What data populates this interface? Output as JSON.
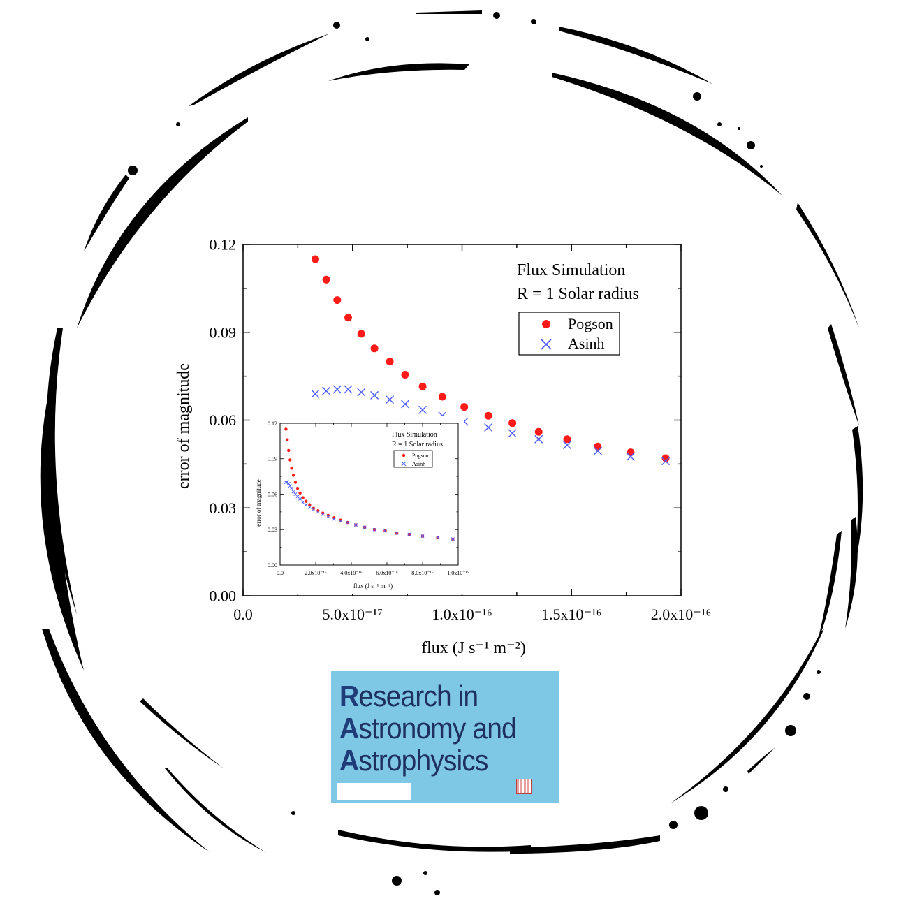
{
  "main_chart": {
    "ylabel": "error of magnitude",
    "xlabel": "flux (J s⁻¹ m⁻²)",
    "xlim": [
      0,
      2e-16
    ],
    "ylim": [
      0,
      0.12
    ],
    "x_ticks": [
      "0.0",
      "5.0x10⁻¹⁷",
      "1.0x10⁻¹⁶",
      "1.5x10⁻¹⁶",
      "2.0x10⁻¹⁶"
    ],
    "y_ticks": [
      "0.00",
      "0.03",
      "0.06",
      "0.09",
      "0.12"
    ],
    "annotation_line1": "Flux Simulation",
    "annotation_line2": "R = 1 Solar radius",
    "legend": [
      "Pogson",
      "Asinh"
    ],
    "colors": {
      "pogson": "#ff1a1a",
      "asinh": "#4a5cff"
    }
  },
  "inset_chart": {
    "ylabel": "error of magnitude",
    "xlabel": "flux (J s⁻¹ m⁻²)",
    "xlim": [
      0,
      1e-15
    ],
    "ylim": [
      0,
      0.12
    ],
    "x_ticks": [
      "0.0",
      "2.0x10⁻¹⁶",
      "4.0x10⁻¹⁶",
      "6.0x10⁻¹⁶",
      "8.0x10⁻¹⁶",
      "1.0x10⁻¹⁵"
    ],
    "y_ticks": [
      "0.00",
      "0.03",
      "0.06",
      "0.09",
      "0.12"
    ],
    "annotation_line1": "Flux Simulation",
    "annotation_line2": "R = 1 Solar radius",
    "legend": [
      "Pogson",
      "Asinh"
    ]
  },
  "chart_data": [
    {
      "type": "scatter",
      "xlim": [
        0,
        2e-16
      ],
      "ylim": [
        0,
        0.12
      ],
      "series": [
        {
          "name": "Pogson",
          "x": [
            3.3e-17,
            3.8e-17,
            4.3e-17,
            4.8e-17,
            5.4e-17,
            6e-17,
            6.7e-17,
            7.4e-17,
            8.2e-17,
            9.1e-17,
            1.01e-16,
            1.12e-16,
            1.23e-16,
            1.35e-16,
            1.48e-16,
            1.62e-16,
            1.77e-16,
            1.93e-16
          ],
          "y": [
            0.115,
            0.108,
            0.101,
            0.095,
            0.0895,
            0.0845,
            0.08,
            0.0755,
            0.0715,
            0.068,
            0.0645,
            0.0615,
            0.059,
            0.056,
            0.0535,
            0.051,
            0.049,
            0.047
          ]
        },
        {
          "name": "Asinh",
          "x": [
            3.3e-17,
            3.8e-17,
            4.3e-17,
            4.8e-17,
            5.4e-17,
            6e-17,
            6.7e-17,
            7.4e-17,
            8.2e-17,
            9.1e-17,
            1.01e-16,
            1.12e-16,
            1.23e-16,
            1.35e-16,
            1.48e-16,
            1.62e-16,
            1.77e-16,
            1.93e-16
          ],
          "y": [
            0.069,
            0.07,
            0.0705,
            0.0705,
            0.0695,
            0.0685,
            0.067,
            0.0655,
            0.0635,
            0.0615,
            0.0595,
            0.0575,
            0.0555,
            0.0535,
            0.0515,
            0.0495,
            0.0475,
            0.046
          ]
        }
      ]
    },
    {
      "type": "scatter",
      "xlim": [
        0,
        1e-15
      ],
      "ylim": [
        0,
        0.12
      ],
      "series": [
        {
          "name": "Pogson",
          "x": [
            3.3e-17,
            4e-17,
            4.8e-17,
            5.6e-17,
            6.5e-17,
            7.5e-17,
            8.6e-17,
            9.8e-17,
            1.12e-16,
            1.28e-16,
            1.46e-16,
            1.66e-16,
            1.88e-16,
            2.13e-16,
            2.4e-16,
            2.7e-16,
            3.03e-16,
            3.4e-16,
            3.8e-16,
            4.25e-16,
            4.75e-16,
            5.3e-16,
            5.9e-16,
            6.55e-16,
            7.25e-16,
            8e-16,
            8.85e-16,
            9.7e-16
          ],
          "y": [
            0.115,
            0.106,
            0.097,
            0.089,
            0.082,
            0.076,
            0.07,
            0.065,
            0.061,
            0.057,
            0.054,
            0.051,
            0.048,
            0.046,
            0.044,
            0.042,
            0.04,
            0.038,
            0.036,
            0.034,
            0.032,
            0.03,
            0.029,
            0.027,
            0.026,
            0.0245,
            0.0235,
            0.022
          ]
        },
        {
          "name": "Asinh",
          "x": [
            3.3e-17,
            4e-17,
            4.8e-17,
            5.6e-17,
            6.5e-17,
            7.5e-17,
            8.6e-17,
            9.8e-17,
            1.12e-16,
            1.28e-16,
            1.46e-16,
            1.66e-16,
            1.88e-16,
            2.13e-16,
            2.4e-16,
            2.7e-16,
            3.03e-16,
            3.4e-16,
            3.8e-16,
            4.25e-16,
            4.75e-16,
            5.3e-16,
            5.9e-16,
            6.55e-16,
            7.25e-16,
            8e-16,
            8.85e-16,
            9.7e-16
          ],
          "y": [
            0.07,
            0.0705,
            0.069,
            0.067,
            0.065,
            0.062,
            0.06,
            0.058,
            0.056,
            0.053,
            0.051,
            0.049,
            0.047,
            0.045,
            0.043,
            0.041,
            0.039,
            0.037,
            0.036,
            0.034,
            0.032,
            0.03,
            0.029,
            0.027,
            0.026,
            0.0245,
            0.0235,
            0.022
          ]
        }
      ]
    }
  ],
  "logo": {
    "line1_initial": "R",
    "line1_rest": "esearch in",
    "line2_initial": "A",
    "line2_rest": "stronomy and",
    "line3_initial": "A",
    "line3_rest": "strophysics",
    "background": "#7ec8e6"
  }
}
